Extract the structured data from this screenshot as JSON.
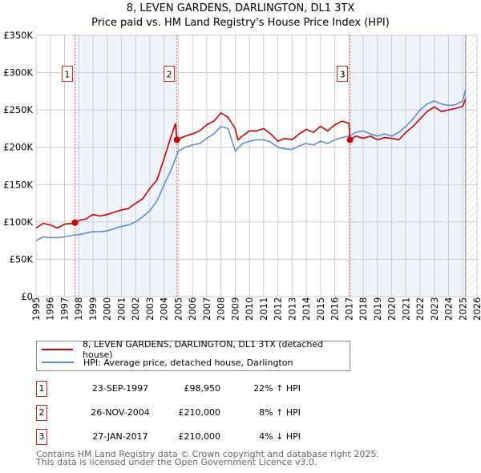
{
  "title": "8, LEVEN GARDENS, DARLINGTON, DL1 3TX",
  "subtitle": "Price paid vs. HM Land Registry's House Price Index (HPI)",
  "chart_data": {
    "type": "line",
    "title": "8, LEVEN GARDENS, DARLINGTON, DL1 3TX",
    "subtitle": "Price paid vs. HM Land Registry's House Price Index (HPI)",
    "xlim": [
      1995,
      2026
    ],
    "ylim": [
      0,
      350000
    ],
    "x_ticks": [
      "1995",
      "1996",
      "1997",
      "1998",
      "1999",
      "2000",
      "2001",
      "2002",
      "2003",
      "2004",
      "2005",
      "2006",
      "2007",
      "2008",
      "2009",
      "2010",
      "2011",
      "2012",
      "2013",
      "2014",
      "2015",
      "2016",
      "2017",
      "2018",
      "2019",
      "2020",
      "2021",
      "2022",
      "2023",
      "2024",
      "2025",
      "2026"
    ],
    "y_ticks": [
      {
        "v": 0,
        "label": "£0"
      },
      {
        "v": 50000,
        "label": "£50K"
      },
      {
        "v": 100000,
        "label": "£100K"
      },
      {
        "v": 150000,
        "label": "£150K"
      },
      {
        "v": 200000,
        "label": "£200K"
      },
      {
        "v": 250000,
        "label": "£250K"
      },
      {
        "v": 300000,
        "label": "£300K"
      },
      {
        "v": 350000,
        "label": "£350K"
      }
    ],
    "grid": true,
    "series": [
      {
        "name": "8, LEVEN GARDENS, DARLINGTON, DL1 3TX (detached house)",
        "color": "#cc0000",
        "x": [
          1995,
          1995.5,
          1996,
          1996.5,
          1997,
          1997.5,
          1997.73,
          1998,
          1998.5,
          1999,
          1999.5,
          2000,
          2000.5,
          2001,
          2001.5,
          2002,
          2002.5,
          2003,
          2003.5,
          2004,
          2004.5,
          2004.8,
          2004.9,
          2005.5,
          2006,
          2006.5,
          2007,
          2007.5,
          2008,
          2008.5,
          2009,
          2009.2,
          2009.5,
          2010,
          2010.5,
          2011,
          2011.5,
          2012,
          2012.5,
          2013,
          2013.5,
          2014,
          2014.5,
          2015,
          2015.5,
          2016,
          2016.5,
          2017,
          2017.07,
          2017.5,
          2018,
          2018.5,
          2019,
          2019.5,
          2020,
          2020.5,
          2021,
          2021.5,
          2022,
          2022.5,
          2023,
          2023.5,
          2024,
          2024.5,
          2025,
          2025.2
        ],
        "y": [
          92000,
          98000,
          96000,
          92000,
          97000,
          98000,
          98950,
          102000,
          104000,
          110000,
          108000,
          110000,
          113000,
          116000,
          118000,
          125000,
          131000,
          145000,
          156000,
          185000,
          215000,
          232000,
          210000,
          215000,
          218000,
          222000,
          230000,
          235000,
          246000,
          240000,
          225000,
          210000,
          215000,
          222000,
          222000,
          225000,
          218000,
          208000,
          212000,
          210000,
          218000,
          224000,
          220000,
          228000,
          222000,
          230000,
          235000,
          232000,
          210000,
          215000,
          212000,
          215000,
          210000,
          213000,
          212000,
          210000,
          220000,
          228000,
          238000,
          248000,
          254000,
          248000,
          250000,
          252000,
          255000,
          265000
        ]
      },
      {
        "name": "HPI: Average price, detached house, Darlington",
        "color": "#5b8fd0",
        "x": [
          1995,
          1995.5,
          1996,
          1996.5,
          1997,
          1997.5,
          1998,
          1998.5,
          1999,
          1999.5,
          2000,
          2000.5,
          2001,
          2001.5,
          2002,
          2002.5,
          2003,
          2003.5,
          2004,
          2004.5,
          2005,
          2005.5,
          2006,
          2006.5,
          2007,
          2007.5,
          2008,
          2008.5,
          2009,
          2009.5,
          2010,
          2010.5,
          2011,
          2011.5,
          2012,
          2012.5,
          2013,
          2013.5,
          2014,
          2014.5,
          2015,
          2015.5,
          2016,
          2016.5,
          2017,
          2017.5,
          2018,
          2018.5,
          2019,
          2019.5,
          2020,
          2020.5,
          2021,
          2021.5,
          2022,
          2022.5,
          2023,
          2023.5,
          2024,
          2024.5,
          2025,
          2025.2
        ],
        "y": [
          75000,
          80000,
          79000,
          79000,
          80000,
          82000,
          83000,
          85000,
          87000,
          87000,
          88000,
          91000,
          94000,
          96000,
          100000,
          107000,
          115000,
          128000,
          150000,
          170000,
          195000,
          200000,
          203000,
          205000,
          212000,
          218000,
          228000,
          225000,
          195000,
          205000,
          208000,
          210000,
          210000,
          207000,
          200000,
          198000,
          197000,
          202000,
          205000,
          203000,
          208000,
          205000,
          210000,
          213000,
          215000,
          220000,
          222000,
          218000,
          215000,
          218000,
          215000,
          220000,
          228000,
          238000,
          250000,
          258000,
          262000,
          258000,
          256000,
          257000,
          262000,
          278000
        ]
      }
    ],
    "sales": [
      {
        "label": "1",
        "x": 1997.73,
        "y": 98950
      },
      {
        "label": "2",
        "x": 2004.9,
        "y": 210000
      },
      {
        "label": "3",
        "x": 2017.07,
        "y": 210000
      }
    ],
    "shaded_ranges": [
      [
        1997.73,
        2004.9
      ],
      [
        2017.07,
        2025.2
      ]
    ],
    "forecast_hatch_from": 2025.2
  },
  "legend": [
    {
      "label": "8, LEVEN GARDENS, DARLINGTON, DL1 3TX (detached house)",
      "color": "#cc0000"
    },
    {
      "label": "HPI: Average price, detached house, Darlington",
      "color": "#5b8fd0"
    }
  ],
  "transactions": [
    {
      "num": "1",
      "date": "23-SEP-1997",
      "price": "£98,950",
      "hpi": "22% ↑ HPI"
    },
    {
      "num": "2",
      "date": "26-NOV-2004",
      "price": "£210,000",
      "hpi": "8% ↑ HPI"
    },
    {
      "num": "3",
      "date": "27-JAN-2017",
      "price": "£210,000",
      "hpi": "4% ↓ HPI"
    }
  ],
  "footer": [
    "Contains HM Land Registry data © Crown copyright and database right 2025.",
    "This data is licensed under the Open Government Licence v3.0."
  ]
}
